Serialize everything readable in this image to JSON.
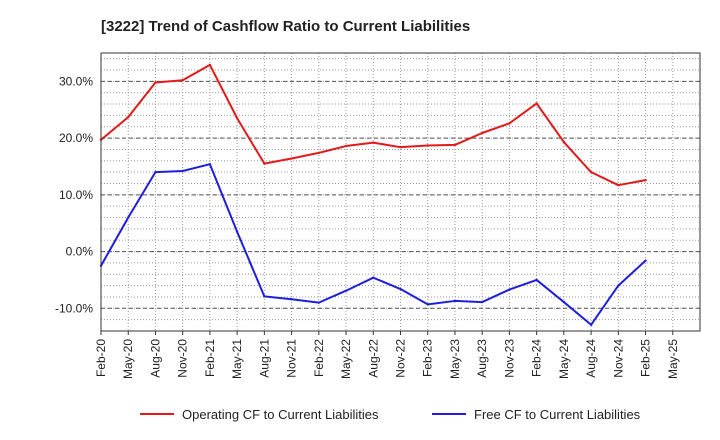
{
  "chart_data": {
    "type": "line",
    "title": "[3222]  Trend of Cashflow Ratio to Current Liabilities",
    "xlabel": "",
    "ylabel": "",
    "x": [
      "Feb-20",
      "May-20",
      "Aug-20",
      "Nov-20",
      "Feb-21",
      "May-21",
      "Aug-21",
      "Nov-21",
      "Feb-22",
      "May-22",
      "Aug-22",
      "Nov-22",
      "Feb-23",
      "May-23",
      "Aug-23",
      "Nov-23",
      "Feb-24",
      "May-24",
      "Aug-24",
      "Nov-24",
      "Feb-25",
      "May-25"
    ],
    "yticks": [
      {
        "value": 30,
        "label": "30.0%"
      },
      {
        "value": 20,
        "label": "20.0%"
      },
      {
        "value": 10,
        "label": "10.0%"
      },
      {
        "value": 0,
        "label": "0.0%"
      },
      {
        "value": -10,
        "label": "-10.0%"
      }
    ],
    "ylim": [
      -14,
      35
    ],
    "grid": true,
    "legend_position": "bottom",
    "series": [
      {
        "name": "Operating CF to Current Liabilities",
        "color": "#e31a1c",
        "values": [
          19.7,
          23.7,
          29.8,
          30.2,
          32.9,
          23.5,
          15.5,
          16.4,
          17.4,
          18.6,
          19.2,
          18.4,
          18.7,
          18.8,
          20.9,
          22.6,
          26.1,
          19.3,
          14.0,
          11.7,
          12.6,
          null
        ]
      },
      {
        "name": "Free CF to Current Liabilities",
        "color": "#1f1fdb",
        "values": [
          -2.5,
          6.0,
          14.0,
          14.2,
          15.4,
          3.5,
          -7.9,
          -8.4,
          -9.0,
          -6.9,
          -4.6,
          -6.6,
          -9.3,
          -8.7,
          -8.9,
          -6.7,
          -5.0,
          -8.9,
          -12.9,
          -6.0,
          -1.6,
          null
        ]
      }
    ]
  }
}
